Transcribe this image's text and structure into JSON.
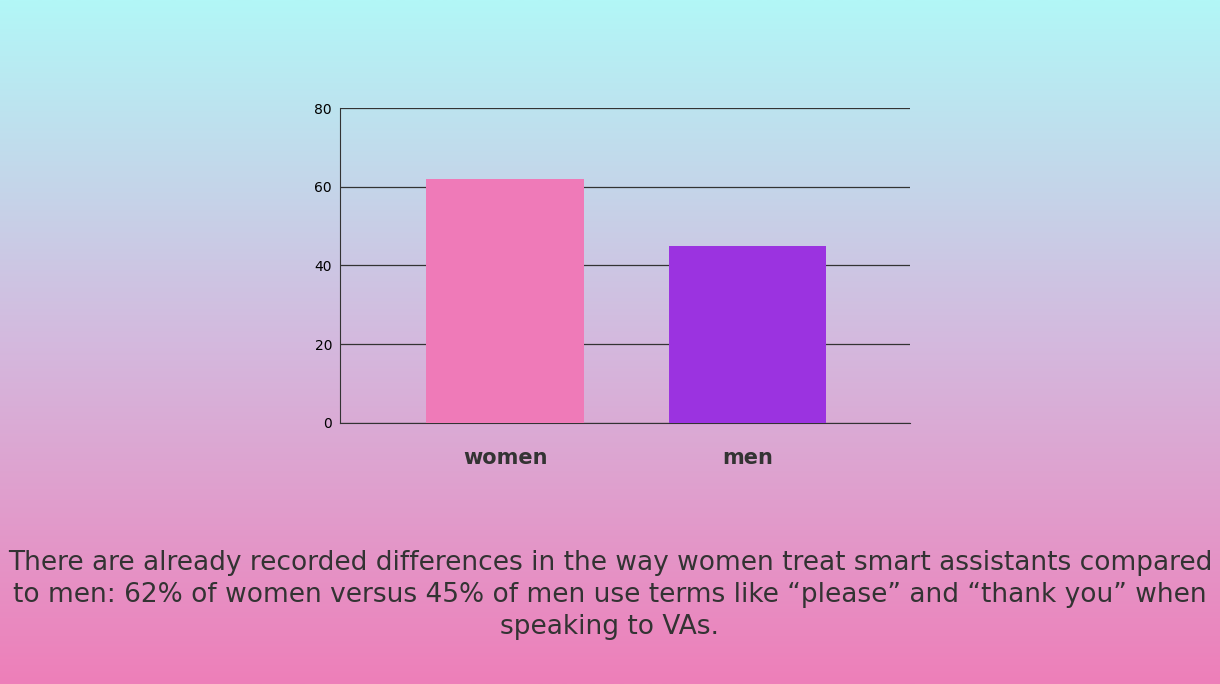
{
  "chart_data": {
    "type": "bar",
    "categories": [
      "women",
      "men"
    ],
    "values": [
      62,
      45
    ],
    "colors": [
      "#ef7ab8",
      "#9b33e0"
    ],
    "ylim": [
      0,
      80
    ],
    "yticks": [
      0,
      20,
      40,
      60,
      80
    ],
    "grid": true,
    "annotation": "There are already recorded differences in the way women treat smart assistants compared to men: 62% of women versus 45% of men use terms like “please” and “thank you” when speaking to VAs."
  }
}
